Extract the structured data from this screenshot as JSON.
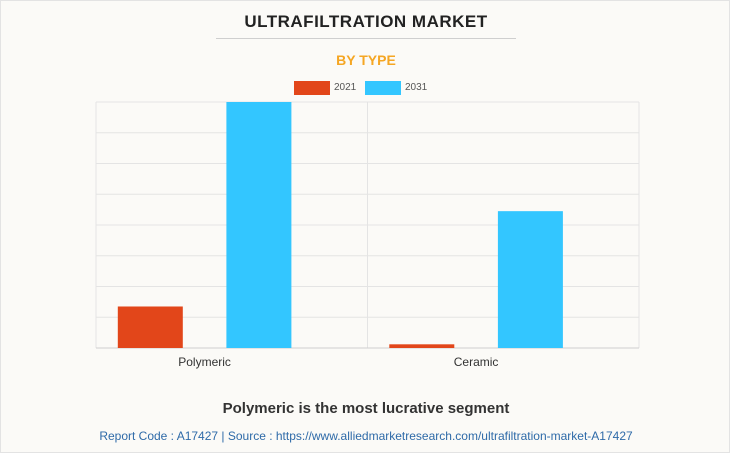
{
  "header": {
    "title": "ULTRAFILTRATION MARKET",
    "subtitle": "BY TYPE"
  },
  "colors": {
    "series_2021": "#e2461a",
    "series_2031": "#33c6ff",
    "subtitle": "#f5a623",
    "footer_link": "#2e6aa8"
  },
  "chart_data": {
    "type": "bar",
    "title": "ULTRAFILTRATION MARKET",
    "subtitle": "BY TYPE",
    "categories": [
      "Polymeric",
      "Ceramic"
    ],
    "series": [
      {
        "name": "2021",
        "values": [
          1.35,
          0.12
        ]
      },
      {
        "name": "2031",
        "values": [
          8.0,
          4.45
        ]
      }
    ],
    "xlabel": "",
    "ylabel": "",
    "ylim": [
      0,
      8
    ],
    "grid": true,
    "legend": "top-center"
  },
  "footer": {
    "headline": "Polymeric is the most lucrative segment",
    "report": "Report Code : A17427  |  Source : https://www.alliedmarketresearch.com/ultrafiltration-market-A17427"
  }
}
